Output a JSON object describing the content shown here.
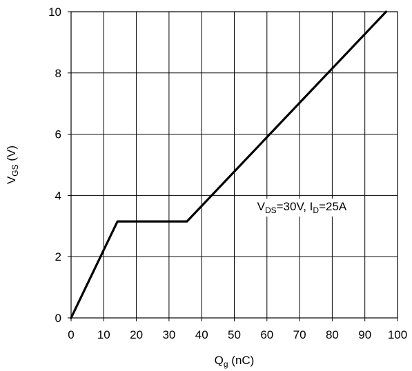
{
  "chart_data": {
    "type": "line",
    "xlabel": {
      "main": "Q",
      "sub": "g",
      "unit": " (nC)"
    },
    "ylabel": {
      "main": "V",
      "sub": "GS",
      "unit": " (V)"
    },
    "xlim": [
      0,
      100
    ],
    "ylim": [
      0,
      10
    ],
    "xticks": [
      0,
      10,
      20,
      30,
      40,
      50,
      60,
      70,
      80,
      90,
      100
    ],
    "yticks": [
      0,
      2,
      4,
      6,
      8,
      10
    ],
    "grid": true,
    "series": [
      {
        "color": "#000000",
        "points": [
          {
            "x": 0,
            "y": 0
          },
          {
            "x": 14.2,
            "y": 3.15
          },
          {
            "x": 35.5,
            "y": 3.15
          },
          {
            "x": 96.5,
            "y": 10
          }
        ]
      }
    ],
    "annotation": {
      "parts": [
        {
          "text": "V",
          "sub": false
        },
        {
          "text": "DS",
          "sub": true
        },
        {
          "text": "=30V, I",
          "sub": false
        },
        {
          "text": "D",
          "sub": true
        },
        {
          "text": "=25A",
          "sub": false
        }
      ],
      "x": 57,
      "y": 3.65
    }
  }
}
